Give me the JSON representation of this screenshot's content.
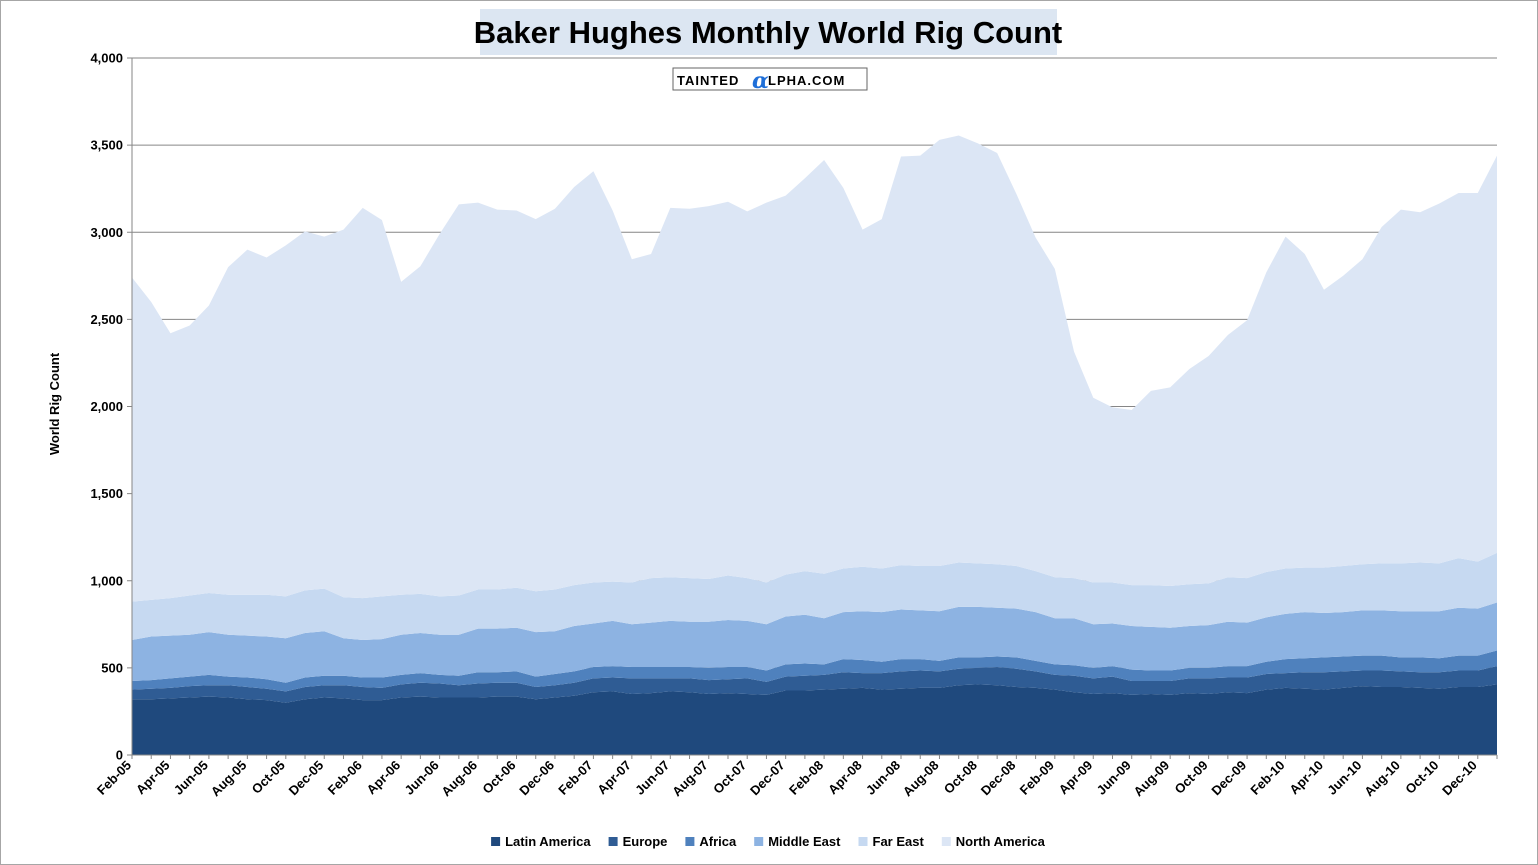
{
  "chart_data": {
    "type": "area",
    "stacked": true,
    "title": "Baker Hughes Monthly World Rig Count",
    "ylabel": "World Rig Count",
    "xlabel": "",
    "ylim": [
      0,
      4000
    ],
    "yticks": [
      0,
      500,
      1000,
      1500,
      2000,
      2500,
      3000,
      3500,
      4000
    ],
    "ytick_labels": [
      "0",
      "500",
      "1,000",
      "1,500",
      "2,000",
      "2,500",
      "3,000",
      "3,500",
      "4,000"
    ],
    "xtick_labels": [
      "Feb-05",
      "Apr-05",
      "Jun-05",
      "Aug-05",
      "Oct-05",
      "Dec-05",
      "Feb-06",
      "Apr-06",
      "Jun-06",
      "Aug-06",
      "Oct-06",
      "Dec-06",
      "Feb-07",
      "Apr-07",
      "Jun-07",
      "Aug-07",
      "Oct-07",
      "Dec-07",
      "Feb-08",
      "Apr-08",
      "Jun-08",
      "Aug-08",
      "Oct-08",
      "Dec-08",
      "Feb-09",
      "Apr-09",
      "Jun-09",
      "Aug-09",
      "Oct-09",
      "Dec-09",
      "Feb-10",
      "Apr-10",
      "Jun-10",
      "Aug-10",
      "Oct-10",
      "Dec-10"
    ],
    "grid": true,
    "legend_position": "bottom",
    "watermark": "TAINTEDαLPHA.COM",
    "x": [
      "Feb-05",
      "Mar-05",
      "Apr-05",
      "May-05",
      "Jun-05",
      "Jul-05",
      "Aug-05",
      "Sep-05",
      "Oct-05",
      "Nov-05",
      "Dec-05",
      "Jan-06",
      "Feb-06",
      "Mar-06",
      "Apr-06",
      "May-06",
      "Jun-06",
      "Jul-06",
      "Aug-06",
      "Sep-06",
      "Oct-06",
      "Nov-06",
      "Dec-06",
      "Jan-07",
      "Feb-07",
      "Mar-07",
      "Apr-07",
      "May-07",
      "Jun-07",
      "Jul-07",
      "Aug-07",
      "Sep-07",
      "Oct-07",
      "Nov-07",
      "Dec-07",
      "Jan-08",
      "Feb-08",
      "Mar-08",
      "Apr-08",
      "May-08",
      "Jun-08",
      "Jul-08",
      "Aug-08",
      "Sep-08",
      "Oct-08",
      "Nov-08",
      "Dec-08",
      "Jan-09",
      "Feb-09",
      "Mar-09",
      "Apr-09",
      "May-09",
      "Jun-09",
      "Jul-09",
      "Aug-09",
      "Sep-09",
      "Oct-09",
      "Nov-09",
      "Dec-09",
      "Jan-10",
      "Feb-10",
      "Mar-10",
      "Apr-10",
      "May-10",
      "Jun-10",
      "Jul-10",
      "Aug-10",
      "Sep-10",
      "Oct-10",
      "Nov-10",
      "Dec-10",
      "Jan-11"
    ],
    "series": [
      {
        "name": "Latin America",
        "color": "#1f497d",
        "values": [
          320,
          320,
          325,
          330,
          335,
          330,
          320,
          315,
          300,
          320,
          330,
          325,
          315,
          315,
          330,
          335,
          330,
          330,
          330,
          335,
          335,
          320,
          330,
          340,
          360,
          365,
          350,
          355,
          365,
          360,
          350,
          355,
          350,
          345,
          370,
          370,
          375,
          380,
          385,
          375,
          380,
          385,
          385,
          400,
          405,
          400,
          390,
          385,
          375,
          360,
          350,
          355,
          345,
          350,
          345,
          355,
          350,
          360,
          355,
          375,
          385,
          380,
          375,
          385,
          395,
          390,
          390,
          385,
          380,
          390,
          390,
          405
        ]
      },
      {
        "name": "Europe",
        "color": "#2f5c94",
        "values": [
          55,
          60,
          60,
          65,
          65,
          70,
          70,
          65,
          65,
          70,
          70,
          75,
          75,
          70,
          75,
          80,
          80,
          70,
          80,
          80,
          80,
          70,
          70,
          75,
          80,
          80,
          90,
          85,
          75,
          80,
          80,
          80,
          90,
          75,
          80,
          85,
          85,
          95,
          85,
          95,
          100,
          100,
          95,
          95,
          95,
          105,
          105,
          95,
          85,
          95,
          90,
          95,
          80,
          75,
          80,
          85,
          90,
          85,
          90,
          90,
          85,
          95,
          100,
          95,
          90,
          95,
          90,
          90,
          95,
          95,
          95,
          105
        ]
      },
      {
        "name": "Africa",
        "color": "#4f81bd",
        "values": [
          50,
          50,
          55,
          55,
          60,
          50,
          55,
          55,
          50,
          55,
          55,
          55,
          55,
          60,
          55,
          55,
          50,
          55,
          65,
          60,
          65,
          60,
          65,
          65,
          65,
          65,
          65,
          65,
          65,
          65,
          70,
          70,
          65,
          65,
          70,
          70,
          60,
          75,
          75,
          65,
          70,
          65,
          60,
          65,
          60,
          60,
          65,
          60,
          60,
          60,
          60,
          60,
          65,
          60,
          60,
          60,
          60,
          65,
          65,
          70,
          80,
          80,
          85,
          85,
          85,
          85,
          80,
          85,
          80,
          85,
          85,
          90
        ]
      },
      {
        "name": "Middle East",
        "color": "#8db3e2",
        "values": [
          235,
          250,
          245,
          240,
          245,
          240,
          240,
          245,
          255,
          255,
          255,
          215,
          215,
          220,
          230,
          230,
          230,
          235,
          250,
          250,
          250,
          255,
          245,
          260,
          250,
          260,
          245,
          255,
          265,
          260,
          265,
          270,
          265,
          265,
          275,
          280,
          265,
          270,
          280,
          285,
          285,
          280,
          285,
          290,
          290,
          280,
          280,
          280,
          265,
          270,
          250,
          245,
          250,
          250,
          245,
          240,
          245,
          255,
          250,
          255,
          260,
          265,
          255,
          255,
          260,
          260,
          265,
          265,
          270,
          275,
          270,
          275
        ]
      },
      {
        "name": "Far East",
        "color": "#c6d9f1",
        "values": [
          220,
          210,
          215,
          225,
          225,
          230,
          235,
          240,
          240,
          245,
          245,
          235,
          240,
          245,
          230,
          225,
          220,
          225,
          225,
          225,
          230,
          235,
          240,
          235,
          235,
          225,
          240,
          255,
          250,
          250,
          245,
          255,
          245,
          240,
          240,
          250,
          255,
          250,
          255,
          250,
          255,
          255,
          260,
          255,
          250,
          250,
          245,
          235,
          235,
          230,
          240,
          235,
          235,
          240,
          240,
          240,
          240,
          255,
          255,
          260,
          260,
          255,
          260,
          265,
          265,
          270,
          275,
          280,
          275,
          285,
          270,
          285
        ]
      },
      {
        "name": "North America",
        "color": "#dce6f5",
        "values": [
          1860,
          1710,
          1520,
          1550,
          1650,
          1880,
          1980,
          1935,
          2015,
          2060,
          2020,
          2110,
          2240,
          2160,
          1795,
          1880,
          2080,
          2245,
          2220,
          2180,
          2165,
          2135,
          2185,
          2285,
          2360,
          2130,
          1855,
          1860,
          2120,
          2120,
          2140,
          2145,
          2105,
          2180,
          2175,
          2255,
          2375,
          2185,
          1935,
          2005,
          2345,
          2355,
          2445,
          2450,
          2410,
          2360,
          2135,
          1915,
          1770,
          1300,
          1060,
          1005,
          1005,
          1115,
          1140,
          1235,
          1305,
          1390,
          1480,
          1720,
          1905,
          1800,
          1595,
          1665,
          1750,
          1930,
          2030,
          2010,
          2065,
          2095,
          2115,
          2280
        ]
      }
    ]
  }
}
